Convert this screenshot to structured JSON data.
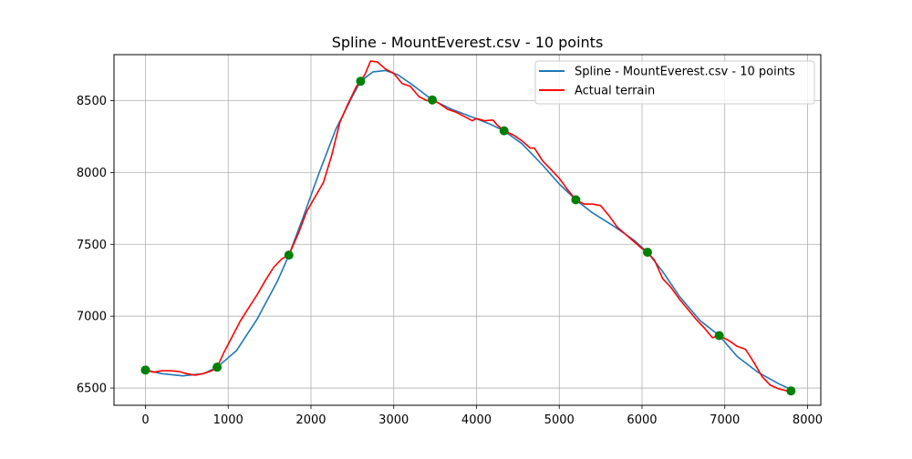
{
  "chart_data": {
    "type": "line",
    "title": "Spline - MountEverest.csv - 10 points",
    "xlabel": "",
    "ylabel": "",
    "xlim": [
      -380,
      8160
    ],
    "ylim": [
      6380,
      8820
    ],
    "x_ticks": [
      0,
      1000,
      2000,
      3000,
      4000,
      5000,
      6000,
      7000,
      8000
    ],
    "y_ticks": [
      6500,
      7000,
      7500,
      8000,
      8500
    ],
    "grid": true,
    "legend_position": "top-right",
    "series": [
      {
        "name": "Spline - MountEverest.csv - 10 points",
        "kind": "line",
        "color": "#1f77b4",
        "x": [
          0,
          200,
          450,
          700,
          866,
          1100,
          1350,
          1600,
          1733,
          1900,
          2100,
          2300,
          2500,
          2600,
          2750,
          2900,
          3050,
          3250,
          3466,
          3700,
          3950,
          4150,
          4333,
          4550,
          4800,
          5000,
          5200,
          5400,
          5650,
          5900,
          6066,
          6250,
          6450,
          6700,
          6933,
          7150,
          7400,
          7650,
          7800
        ],
        "y": [
          6625,
          6600,
          6585,
          6600,
          6645,
          6760,
          6980,
          7250,
          7425,
          7680,
          8000,
          8300,
          8530,
          8635,
          8700,
          8710,
          8680,
          8600,
          8505,
          8440,
          8385,
          8340,
          8290,
          8200,
          8050,
          7920,
          7810,
          7720,
          7630,
          7530,
          7445,
          7310,
          7140,
          6970,
          6865,
          6720,
          6610,
          6530,
          6490
        ]
      },
      {
        "name": "Actual terrain",
        "kind": "line",
        "color": "#ff0000",
        "x": [
          0,
          100,
          200,
          300,
          400,
          500,
          600,
          700,
          800,
          866,
          950,
          1050,
          1150,
          1250,
          1350,
          1450,
          1550,
          1650,
          1733,
          1850,
          1950,
          2050,
          2150,
          2250,
          2350,
          2450,
          2550,
          2600,
          2650,
          2720,
          2800,
          2900,
          3000,
          3100,
          3200,
          3300,
          3400,
          3466,
          3550,
          3650,
          3750,
          3850,
          3950,
          4000,
          4100,
          4200,
          4250,
          4333,
          4450,
          4550,
          4650,
          4700,
          4800,
          4900,
          5000,
          5100,
          5200,
          5300,
          5400,
          5500,
          5600,
          5700,
          5800,
          5900,
          6000,
          6066,
          6150,
          6250,
          6350,
          6450,
          6550,
          6650,
          6750,
          6850,
          6933,
          7050,
          7150,
          7250,
          7350,
          7450,
          7550,
          7650,
          7750,
          7800
        ],
        "y": [
          6625,
          6610,
          6620,
          6620,
          6615,
          6600,
          6590,
          6600,
          6620,
          6645,
          6750,
          6860,
          6970,
          7060,
          7150,
          7250,
          7340,
          7400,
          7425,
          7580,
          7730,
          7830,
          7930,
          8120,
          8350,
          8480,
          8600,
          8635,
          8680,
          8775,
          8770,
          8720,
          8690,
          8620,
          8600,
          8530,
          8500,
          8505,
          8480,
          8440,
          8420,
          8390,
          8360,
          8375,
          8360,
          8365,
          8330,
          8290,
          8260,
          8220,
          8170,
          8170,
          8080,
          8020,
          7960,
          7880,
          7810,
          7780,
          7780,
          7770,
          7700,
          7620,
          7570,
          7520,
          7470,
          7445,
          7390,
          7260,
          7200,
          7120,
          7050,
          6980,
          6920,
          6850,
          6865,
          6830,
          6790,
          6770,
          6680,
          6580,
          6520,
          6495,
          6480,
          6480
        ]
      },
      {
        "name": "",
        "kind": "points",
        "color": "#008000",
        "x": [
          0,
          866,
          1733,
          2600,
          3466,
          4333,
          5200,
          6066,
          6933,
          7800
        ],
        "y": [
          6625,
          6645,
          7425,
          8635,
          8505,
          8290,
          7810,
          7445,
          6865,
          6480
        ]
      }
    ]
  }
}
